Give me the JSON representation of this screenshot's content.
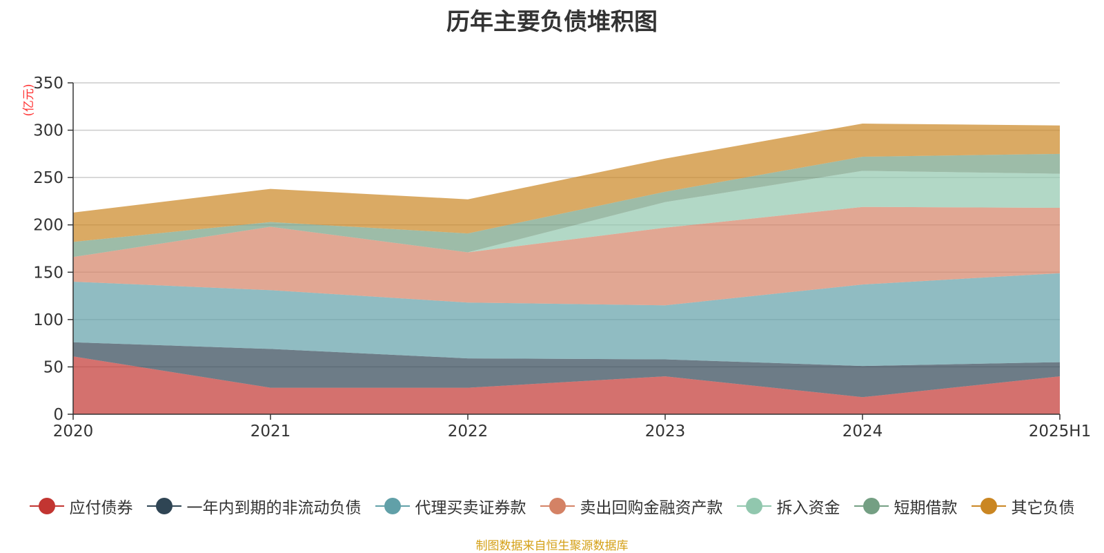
{
  "chart_data": {
    "type": "area",
    "stacked": true,
    "title": "历年主要负债堆积图",
    "unit_label": "(亿元)",
    "categories": [
      "2020",
      "2021",
      "2022",
      "2023",
      "2024",
      "2025H1"
    ],
    "ylim": [
      0,
      350
    ],
    "yticks": [
      0,
      50,
      100,
      150,
      200,
      250,
      300,
      350
    ],
    "grid": true,
    "legend_position": "bottom",
    "series": [
      {
        "name": "应付债券",
        "color": "#c23531",
        "values": [
          61,
          28,
          28,
          40,
          18,
          40
        ]
      },
      {
        "name": "一年内到期的非流动负债",
        "color": "#2f4554",
        "values": [
          15,
          41,
          31,
          18,
          33,
          15
        ]
      },
      {
        "name": "代理买卖证券款",
        "color": "#61a0a8",
        "values": [
          64,
          62,
          59,
          57,
          86,
          94
        ]
      },
      {
        "name": "卖出回购金融资产款",
        "color": "#d48265",
        "values": [
          26,
          67,
          53,
          82,
          82,
          69
        ]
      },
      {
        "name": "拆入资金",
        "color": "#91c7ae",
        "values": [
          0,
          0,
          0,
          27,
          38,
          36
        ]
      },
      {
        "name": "短期借款",
        "color": "#749f83",
        "values": [
          16,
          5,
          20,
          11,
          15,
          21
        ]
      },
      {
        "name": "其它负债",
        "color": "#ca8622",
        "values": [
          31,
          35,
          36,
          35,
          35,
          30
        ]
      }
    ]
  },
  "footer": {
    "source_note": "制图数据来自恒生聚源数据库"
  }
}
